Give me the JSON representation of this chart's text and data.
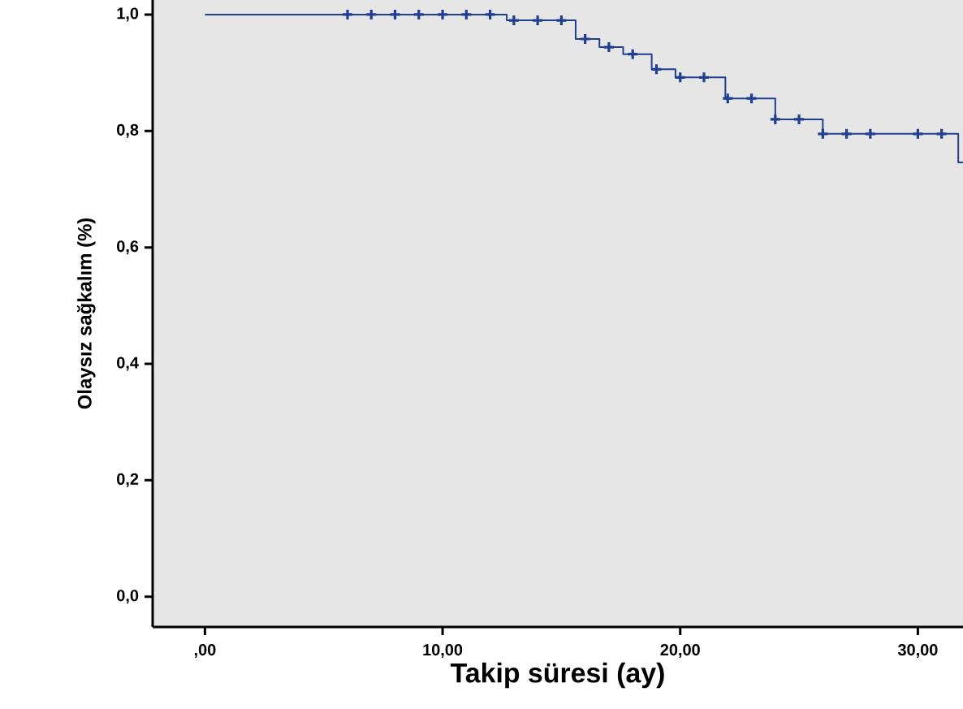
{
  "chart_data": {
    "type": "step",
    "xlabel": "Takip süresi (ay)",
    "ylabel": "Olaysız sağkalım (%)",
    "xlim": [
      -2.2,
      31.9
    ],
    "ylim": [
      -0.052,
      1.025
    ],
    "xticks": [
      {
        "value": 0,
        "label": ",00"
      },
      {
        "value": 10,
        "label": "10,00"
      },
      {
        "value": 20,
        "label": "20,00"
      },
      {
        "value": 30,
        "label": "30,00"
      }
    ],
    "yticks": [
      {
        "value": 0,
        "label": "0,0"
      },
      {
        "value": 0.2,
        "label": "0,2"
      },
      {
        "value": 0.4,
        "label": "0,4"
      },
      {
        "value": 0.6,
        "label": "0,6"
      },
      {
        "value": 0.8,
        "label": "0,8"
      },
      {
        "value": 1.0,
        "label": "1,0"
      }
    ],
    "series": [
      {
        "color": "#213f8f",
        "x": [
          0,
          12.7,
          15.6,
          16.6,
          17.6,
          18.8,
          19.8,
          21.9,
          24.0,
          26.0,
          31.7,
          31.9
        ],
        "values": [
          1.0,
          0.99,
          0.958,
          0.944,
          0.932,
          0.906,
          0.892,
          0.856,
          0.82,
          0.795,
          0.746,
          0.746
        ]
      },
      {
        "type": "scatter",
        "marker": "cross",
        "color": "#213f8f",
        "x": [
          6,
          7,
          8,
          9,
          10,
          11,
          12,
          13,
          14,
          15,
          16,
          17,
          18,
          19,
          20,
          21,
          22,
          23,
          24,
          25,
          26,
          27,
          28,
          30,
          31
        ],
        "values": [
          1.0,
          1.0,
          1.0,
          1.0,
          1.0,
          1.0,
          1.0,
          0.99,
          0.99,
          0.99,
          0.958,
          0.944,
          0.932,
          0.906,
          0.892,
          0.892,
          0.856,
          0.856,
          0.82,
          0.82,
          0.795,
          0.795,
          0.795,
          0.795,
          0.795
        ]
      }
    ]
  }
}
